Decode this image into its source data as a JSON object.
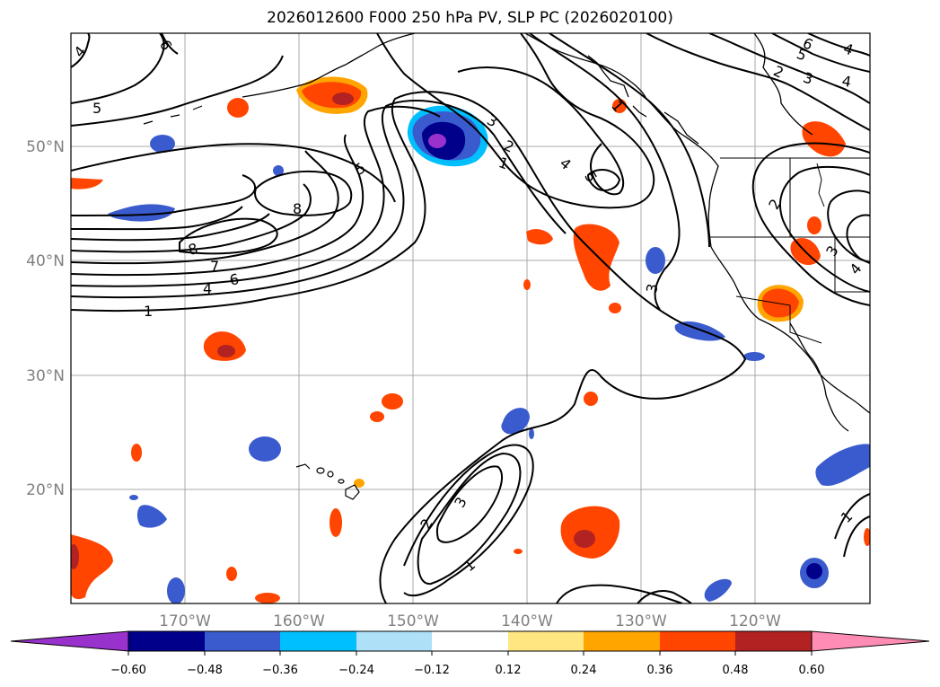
{
  "title": "2026012600 F000 250 hPa PV, SLP PC (2026020100)",
  "lon_labels": [
    "170°W",
    "160°W",
    "150°W",
    "140°W",
    "130°W",
    "120°W"
  ],
  "lat_labels": [
    "50°N",
    "40°N",
    "30°N",
    "20°N"
  ],
  "contour_labels": [
    "4",
    "6",
    "5",
    "5",
    "8",
    "8",
    "7",
    "6",
    "4",
    "1",
    "3",
    "2",
    "1",
    "4",
    "5",
    "3",
    "2",
    "3",
    "1",
    "6",
    "5",
    "4",
    "4",
    "2",
    "3",
    "2",
    "1",
    "4",
    "3",
    "1"
  ],
  "colorbar": {
    "ticks": [
      "−0.60",
      "−0.48",
      "−0.36",
      "−0.24",
      "−0.12",
      "0.12",
      "0.24",
      "0.36",
      "0.48",
      "0.60"
    ],
    "colors": [
      "#9932cc",
      "#00008b",
      "#3a5bcd",
      "#00bfff",
      "#aee0f8",
      "#ffffff",
      "#ffe680",
      "#ffa500",
      "#ff4500",
      "#b22222",
      "#ff8cb4"
    ]
  }
}
